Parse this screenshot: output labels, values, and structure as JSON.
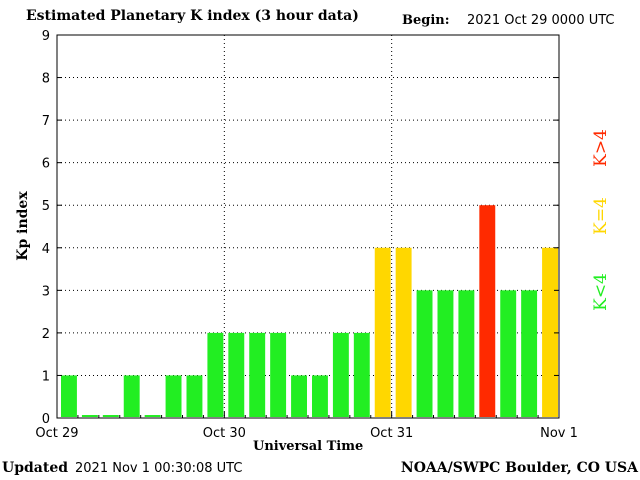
{
  "header": {
    "title": "Estimated Planetary K index (3 hour data)",
    "begin_label": "Begin:",
    "begin_value": "2021 Oct 29 0000 UTC"
  },
  "footer": {
    "updated_label": "Updated",
    "updated_value": "2021 Nov  1 00:30:08 UTC",
    "credit": "NOAA/SWPC Boulder, CO USA"
  },
  "legend": [
    {
      "label": "K<4",
      "color": "#22ee22"
    },
    {
      "label": "K=4",
      "color": "#ffd700"
    },
    {
      "label": "K>4",
      "color": "#ff2a00"
    }
  ],
  "chart_data": {
    "type": "bar",
    "title": "Estimated Planetary K index (3 hour data)",
    "xlabel": "Universal Time",
    "ylabel": "Kp index",
    "ylim": [
      0,
      9
    ],
    "yticks": [
      0,
      1,
      2,
      3,
      4,
      5,
      6,
      7,
      8,
      9
    ],
    "xticks": [
      "Oct 29",
      "Oct 30",
      "Oct 31",
      "Nov 1"
    ],
    "grid": true,
    "bar_interval_hours": 3,
    "categories": [
      "Oct 29 00",
      "Oct 29 03",
      "Oct 29 06",
      "Oct 29 09",
      "Oct 29 12",
      "Oct 29 15",
      "Oct 29 18",
      "Oct 29 21",
      "Oct 30 00",
      "Oct 30 03",
      "Oct 30 06",
      "Oct 30 09",
      "Oct 30 12",
      "Oct 30 15",
      "Oct 30 18",
      "Oct 30 21",
      "Oct 31 00",
      "Oct 31 03",
      "Oct 31 06",
      "Oct 31 09",
      "Oct 31 12",
      "Oct 31 15",
      "Oct 31 18",
      "Oct 31 21"
    ],
    "values": [
      1,
      0.07,
      0.07,
      1,
      0.07,
      1,
      1,
      2,
      2,
      2,
      2,
      1,
      1,
      2,
      2,
      4,
      4,
      3,
      3,
      3,
      5,
      3,
      3,
      4
    ],
    "colors": {
      "low": "#22ee22",
      "equal": "#ffd700",
      "high": "#ff2a00"
    }
  }
}
